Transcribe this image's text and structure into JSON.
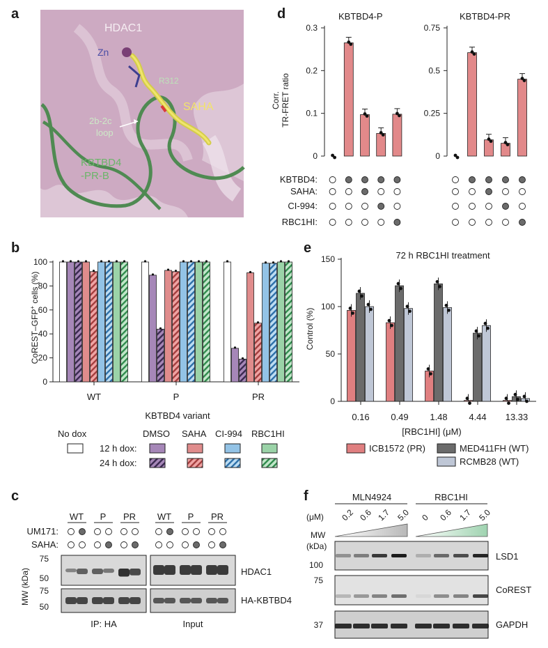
{
  "panels": {
    "a": {
      "label": "a",
      "HDAC1": "HDAC1",
      "Zn": "Zn",
      "R312": "R312",
      "SAHA": "SAHA",
      "loop1": "2b-2c",
      "loop2": "loop",
      "kb1": "KBTBD4",
      "kb2": "-PR-B"
    },
    "b": {
      "label": "b",
      "ylabel": "CoREST–GFP",
      "ylabel_sup": "+",
      "ylabel_tail": " cells (%)",
      "xlabel": "KBTBD4 variant",
      "groups": [
        "WT",
        "P",
        "PR"
      ],
      "legend": {
        "no_dox": "No dox",
        "dmso": "DMSO",
        "saha": "SAHA",
        "ci994": "CI-994",
        "rbc1hi": "RBC1HI",
        "h12": "12 h dox:",
        "h24": "24 h dox:"
      }
    },
    "c": {
      "label": "c",
      "cols": [
        "WT",
        "P",
        "PR",
        "WT",
        "P",
        "PR"
      ],
      "um171": "UM171:",
      "saha": "SAHA:",
      "mw": "MW (kDa)",
      "blot1": "HDAC1",
      "blot2": "HA-KBTBD4",
      "ip": "IP: HA",
      "input": "Input"
    },
    "d": {
      "label": "d",
      "ylabel1": "Corr.",
      "ylabel2": "TR-FRET ratio",
      "rows": [
        "KBTBD4:",
        "SAHA:",
        "CI-994:",
        "RBC1HI:"
      ]
    },
    "e": {
      "label": "e",
      "title": "72 h RBC1HI treatment",
      "ylabel": "Control (%)",
      "xlabel": "[RBC1HI] (μM)",
      "legend": [
        "ICB1572 (PR)",
        "MED411FH (WT)",
        "RCMB28 (WT)"
      ]
    },
    "f": {
      "label": "f",
      "mln": "MLN4924",
      "rbc": "RBC1HI",
      "um": "(μM)",
      "mln_doses": [
        "0.2",
        "0.6",
        "1.7",
        "5.0"
      ],
      "rbc_doses": [
        "0",
        "0.6",
        "1.7",
        "5.0"
      ],
      "mw1": "MW",
      "mw2": "(kDa)",
      "blots": [
        "LSD1",
        "CoREST",
        "GAPDH"
      ]
    }
  },
  "chart_data": [
    {
      "panel": "b",
      "type": "bar",
      "categories": [
        "WT",
        "P",
        "PR"
      ],
      "ylabel": "CoREST–GFP+ cells (%)",
      "xlabel": "KBTBD4 variant",
      "ylim": [
        0,
        100
      ],
      "yticks": [
        0,
        20,
        40,
        60,
        80,
        100
      ],
      "series": [
        {
          "name": "No dox",
          "color": "#ffffff",
          "values": [
            100,
            100,
            100
          ]
        },
        {
          "name": "12 h dox: DMSO",
          "color": "#a687b8",
          "values": [
            100,
            89,
            28
          ]
        },
        {
          "name": "24 h dox: DMSO",
          "color": "#7a5a96",
          "hatch": true,
          "values": [
            100,
            44,
            19
          ]
        },
        {
          "name": "12 h dox: SAHA",
          "color": "#e08c8c",
          "values": [
            100,
            93,
            91
          ]
        },
        {
          "name": "24 h dox: SAHA",
          "color": "#d86c6c",
          "hatch": true,
          "values": [
            92,
            92,
            49
          ]
        },
        {
          "name": "12 h dox: CI-994",
          "color": "#93c3e6",
          "values": [
            100,
            100,
            99
          ]
        },
        {
          "name": "24 h dox: CI-994",
          "color": "#5a9fd4",
          "hatch": true,
          "values": [
            100,
            100,
            99
          ]
        },
        {
          "name": "12 h dox: RBC1HI",
          "color": "#9bd3a8",
          "values": [
            100,
            100,
            100
          ]
        },
        {
          "name": "24 h dox: RBC1HI",
          "color": "#5cb376",
          "hatch": true,
          "values": [
            100,
            100,
            100
          ]
        }
      ]
    },
    {
      "panel": "d-left",
      "type": "bar",
      "title": "KBTBD4-P",
      "ylabel": "Corr. TR-FRET ratio",
      "ylim": [
        0,
        0.3
      ],
      "yticks": [
        0,
        0.1,
        0.2,
        0.3
      ],
      "values": [
        0.0,
        0.265,
        0.097,
        0.053,
        0.098
      ],
      "conditions": [
        [
          0,
          0,
          0,
          0
        ],
        [
          1,
          0,
          0,
          0
        ],
        [
          1,
          1,
          0,
          0
        ],
        [
          1,
          0,
          1,
          0
        ],
        [
          1,
          0,
          0,
          1
        ]
      ]
    },
    {
      "panel": "d-right",
      "type": "bar",
      "title": "KBTBD4-PR",
      "ylim": [
        0,
        0.75
      ],
      "yticks": [
        0,
        0.25,
        0.5,
        0.75
      ],
      "values": [
        0.0,
        0.605,
        0.095,
        0.075,
        0.45
      ],
      "conditions": [
        [
          0,
          0,
          0,
          0
        ],
        [
          1,
          0,
          0,
          0
        ],
        [
          1,
          1,
          0,
          0
        ],
        [
          1,
          0,
          1,
          0
        ],
        [
          1,
          0,
          0,
          1
        ]
      ]
    },
    {
      "panel": "e",
      "type": "bar",
      "title": "72 h RBC1HI treatment",
      "categories": [
        "0.16",
        "0.49",
        "1.48",
        "4.44",
        "13.33"
      ],
      "xlabel": "[RBC1HI] (μM)",
      "ylabel": "Control (%)",
      "ylim": [
        0,
        150
      ],
      "yticks": [
        0,
        50,
        100,
        150
      ],
      "series": [
        {
          "name": "ICB1572 (PR)",
          "color": "#e07f80",
          "values": [
            96,
            83,
            32,
            1,
            1
          ]
        },
        {
          "name": "MED411FH (WT)",
          "color": "#6b6b6b",
          "values": [
            114,
            122,
            124,
            72,
            5
          ]
        },
        {
          "name": "RCMB28 (WT)",
          "color": "#bfc7d6",
          "values": [
            100,
            98,
            99,
            80,
            3
          ]
        }
      ]
    }
  ]
}
